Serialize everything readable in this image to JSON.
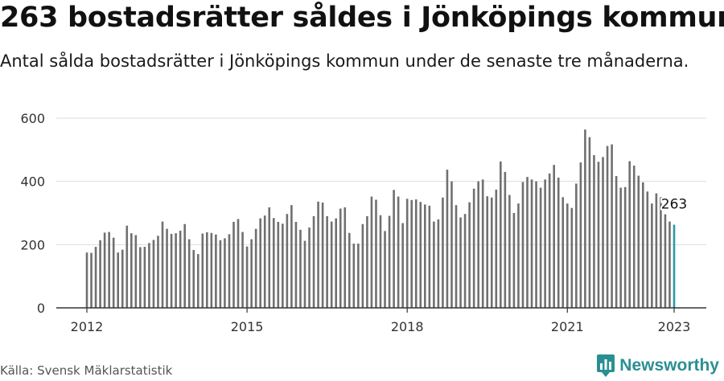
{
  "title": "263 bostadsrätter såldes i Jönköpings kommun",
  "subtitle": "Antal sålda bostadsrätter i Jönköpings kommun under de senaste tre månaderna.",
  "source": "Källa: Svensk Mäklarstatistik",
  "brand": {
    "name": "Newsworthy",
    "icon": "newsworthy-logo-icon"
  },
  "colors": {
    "bar": "#707070",
    "highlight": "#2a9aa8",
    "grid": "#dddddd",
    "axis": "#333333",
    "brand": "#2a8f93"
  },
  "chart_data": {
    "type": "bar",
    "title": "",
    "xlabel": "",
    "ylabel": "",
    "ylim": [
      0,
      600
    ],
    "yticks": [
      0,
      200,
      400,
      600
    ],
    "xticks": [
      "2012",
      "2015",
      "2018",
      "2021",
      "2023"
    ],
    "grid": true,
    "start": "2012-01",
    "end": "2023-01",
    "highlight_label": "263",
    "series": [
      {
        "values": [
          175,
          174,
          193,
          214,
          238,
          240,
          222,
          175,
          184,
          260,
          236,
          230,
          192,
          193,
          205,
          215,
          228,
          273,
          250,
          234,
          236,
          244,
          265,
          217,
          183,
          170,
          235,
          239,
          237,
          232,
          214,
          220,
          233,
          272,
          281,
          240,
          194,
          217,
          250,
          283,
          292,
          318,
          284,
          272,
          266,
          297,
          325,
          272,
          247,
          212,
          254,
          290,
          336,
          333,
          290,
          273,
          283,
          314,
          318,
          237,
          203,
          203,
          265,
          290,
          352,
          342,
          293,
          243,
          291,
          373,
          352,
          268,
          345,
          341,
          343,
          335,
          327,
          323,
          273,
          280,
          349,
          437,
          400,
          325,
          286,
          297,
          334,
          377,
          400,
          406,
          353,
          349,
          374,
          463,
          430,
          357,
          300,
          330,
          398,
          414,
          406,
          400,
          380,
          406,
          425,
          452,
          412,
          350,
          330,
          316,
          393,
          460,
          564,
          540,
          483,
          462,
          477,
          512,
          517,
          417,
          380,
          382,
          464,
          450,
          418,
          397,
          368,
          330,
          362,
          350,
          296,
          273,
          263
        ]
      }
    ]
  }
}
